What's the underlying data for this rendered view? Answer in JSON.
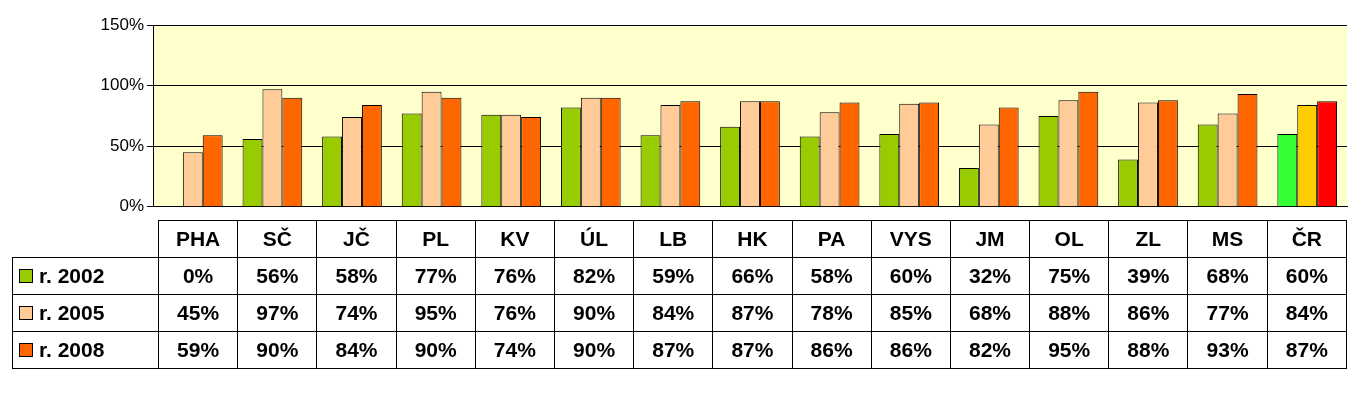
{
  "chart_data": {
    "type": "bar",
    "categories": [
      "PHA",
      "SČ",
      "JČ",
      "PL",
      "KV",
      "ÚL",
      "LB",
      "HK",
      "PA",
      "VYS",
      "JM",
      "OL",
      "ZL",
      "MS",
      "ČR"
    ],
    "series": [
      {
        "name": "r. 2002",
        "color": "#99cc00",
        "colors": [
          "#99cc00",
          "#99cc00",
          "#99cc00",
          "#99cc00",
          "#99cc00",
          "#99cc00",
          "#99cc00",
          "#99cc00",
          "#99cc00",
          "#99cc00",
          "#99cc00",
          "#99cc00",
          "#99cc00",
          "#99cc00",
          "#33ff33"
        ],
        "values": [
          0,
          56,
          58,
          77,
          76,
          82,
          59,
          66,
          58,
          60,
          32,
          75,
          39,
          68,
          60
        ],
        "value_labels": [
          "0%",
          "56%",
          "58%",
          "77%",
          "76%",
          "82%",
          "59%",
          "66%",
          "58%",
          "60%",
          "32%",
          "75%",
          "39%",
          "68%",
          "60%"
        ]
      },
      {
        "name": "r. 2005",
        "color": "#ffcc99",
        "colors": [
          "#ffcc99",
          "#ffcc99",
          "#ffcc99",
          "#ffcc99",
          "#ffcc99",
          "#ffcc99",
          "#ffcc99",
          "#ffcc99",
          "#ffcc99",
          "#ffcc99",
          "#ffcc99",
          "#ffcc99",
          "#ffcc99",
          "#ffcc99",
          "#ffcc00"
        ],
        "values": [
          45,
          97,
          74,
          95,
          76,
          90,
          84,
          87,
          78,
          85,
          68,
          88,
          86,
          77,
          84
        ],
        "value_labels": [
          "45%",
          "97%",
          "74%",
          "95%",
          "76%",
          "90%",
          "84%",
          "87%",
          "78%",
          "85%",
          "68%",
          "88%",
          "86%",
          "77%",
          "84%"
        ]
      },
      {
        "name": "r. 2008",
        "color": "#ff6600",
        "colors": [
          "#ff6600",
          "#ff6600",
          "#ff6600",
          "#ff6600",
          "#ff6600",
          "#ff6600",
          "#ff6600",
          "#ff6600",
          "#ff6600",
          "#ff6600",
          "#ff6600",
          "#ff6600",
          "#ff6600",
          "#ff6600",
          "#ff0000"
        ],
        "values": [
          59,
          90,
          84,
          90,
          74,
          90,
          87,
          87,
          86,
          86,
          82,
          95,
          88,
          93,
          87
        ],
        "value_labels": [
          "59%",
          "90%",
          "84%",
          "90%",
          "74%",
          "90%",
          "87%",
          "87%",
          "86%",
          "86%",
          "82%",
          "95%",
          "88%",
          "93%",
          "87%"
        ]
      }
    ],
    "ylim": [
      0,
      150
    ],
    "yticks": [
      {
        "value": 0,
        "label": "0%"
      },
      {
        "value": 50,
        "label": "50%"
      },
      {
        "value": 100,
        "label": "100%"
      },
      {
        "value": 150,
        "label": "150%"
      }
    ],
    "grid": "y",
    "legend": "bottom left"
  }
}
